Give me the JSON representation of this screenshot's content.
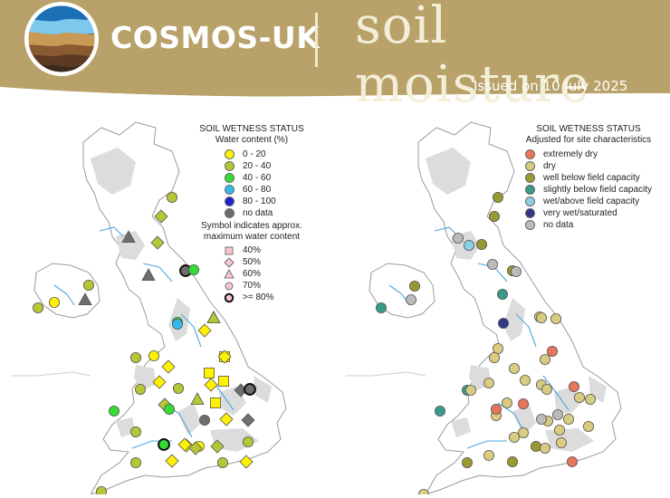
{
  "header": {
    "brand": "COSMOS-UK",
    "title": "soil moisture",
    "issued": "Issued on 10 July 2025",
    "bg_color": "#b8a269"
  },
  "left_legend": {
    "title": "SOIL WETNESS STATUS",
    "subtitle": "Water content (%)",
    "classes": [
      {
        "label": "0 -  20",
        "color": "#fff200"
      },
      {
        "label": "20 -  40",
        "color": "#b5c636"
      },
      {
        "label": "40 -  60",
        "color": "#33dd33"
      },
      {
        "label": "60 -  80",
        "color": "#33bbee"
      },
      {
        "label": "80 - 100",
        "color": "#2222cc"
      },
      {
        "label": "no data",
        "color": "#6e6e6e"
      }
    ],
    "symbol_title_1": "Symbol indicates approx.",
    "symbol_title_2": "maximum water content",
    "symbols": [
      {
        "label": "40%",
        "shape": "square"
      },
      {
        "label": "50%",
        "shape": "diamond"
      },
      {
        "label": "60%",
        "shape": "triangle"
      },
      {
        "label": "70%",
        "shape": "circle"
      },
      {
        "label": ">= 80%",
        "shape": "circle-bold"
      }
    ]
  },
  "right_legend": {
    "title": "SOIL WETNESS STATUS",
    "subtitle": "Adjusted for site characteristics",
    "classes": [
      {
        "label": "extremely dry",
        "color": "#e8755a"
      },
      {
        "label": "dry",
        "color": "#d9cc80"
      },
      {
        "label": "well below field capacity",
        "color": "#999933"
      },
      {
        "label": "slightly below field capacity",
        "color": "#3a9a8a"
      },
      {
        "label": "wet/above field capacity",
        "color": "#8ecfe6"
      },
      {
        "label": "very wet/saturated",
        "color": "#2e3a86"
      },
      {
        "label": "no data",
        "color": "#bbbbbb"
      }
    ]
  },
  "left_sites": [
    {
      "shape": "circle",
      "cls": 1
    },
    {
      "shape": "diamond",
      "cls": 1
    },
    {
      "shape": "diamond",
      "cls": 1
    },
    {
      "shape": "triangle",
      "cls": 5
    },
    {
      "shape": "triangle",
      "cls": 5
    },
    {
      "shape": "triangle",
      "cls": 5
    },
    {
      "shape": "circle",
      "cls": 1
    },
    {
      "shape": "circle-bold",
      "cls": 5
    },
    {
      "shape": "circle",
      "cls": 2
    },
    {
      "shape": "triangle",
      "cls": 5
    },
    {
      "shape": "circle",
      "cls": 2
    },
    {
      "shape": "circle",
      "cls": 3
    },
    {
      "shape": "triangle",
      "cls": 1
    },
    {
      "shape": "diamond",
      "cls": 0
    },
    {
      "shape": "circle",
      "cls": 1
    },
    {
      "shape": "circle",
      "cls": 0
    },
    {
      "shape": "diamond",
      "cls": 0
    },
    {
      "shape": "circle",
      "cls": 1
    },
    {
      "shape": "diamond",
      "cls": 0
    },
    {
      "shape": "circle",
      "cls": 1
    },
    {
      "shape": "square",
      "cls": 0
    },
    {
      "shape": "diamond",
      "cls": 0
    },
    {
      "shape": "square",
      "cls": 0
    },
    {
      "shape": "square",
      "cls": 0
    },
    {
      "shape": "circle",
      "cls": 2
    },
    {
      "shape": "circle",
      "cls": 1
    },
    {
      "shape": "diamond",
      "cls": 1
    },
    {
      "shape": "triangle",
      "cls": 1
    },
    {
      "shape": "circle",
      "cls": 2
    },
    {
      "shape": "square",
      "cls": 0
    },
    {
      "shape": "diamond",
      "cls": 0
    },
    {
      "shape": "diamond",
      "cls": 5
    },
    {
      "shape": "circle-bold",
      "cls": 5
    },
    {
      "shape": "diamond",
      "cls": 0
    },
    {
      "shape": "circle",
      "cls": 5
    },
    {
      "shape": "diamond",
      "cls": 5
    },
    {
      "shape": "diamond",
      "cls": 0
    },
    {
      "shape": "circle",
      "cls": 0
    },
    {
      "shape": "diamond",
      "cls": 1
    },
    {
      "shape": "circle",
      "cls": 1
    },
    {
      "shape": "circle-bold",
      "cls": 2
    },
    {
      "shape": "diamond",
      "cls": 0
    },
    {
      "shape": "diamond",
      "cls": 1
    },
    {
      "shape": "circle",
      "cls": 1
    },
    {
      "shape": "diamond",
      "cls": 0
    },
    {
      "shape": "circle",
      "cls": 1
    },
    {
      "shape": "diamond",
      "cls": 0
    },
    {
      "shape": "circle",
      "cls": 1
    },
    {
      "shape": "circle",
      "cls": 0
    },
    {
      "shape": "circle",
      "cls": 1
    }
  ],
  "right_sites": [
    {
      "cls": 2
    },
    {
      "cls": 2
    },
    {
      "cls": 6
    },
    {
      "cls": 4
    },
    {
      "cls": 2
    },
    {
      "cls": 6
    },
    {
      "cls": 2
    },
    {
      "cls": 6
    },
    {
      "cls": 3
    },
    {
      "cls": 2
    },
    {
      "cls": 6
    },
    {
      "cls": 3
    },
    {
      "cls": 5
    },
    {
      "cls": 1
    },
    {
      "cls": 1
    },
    {
      "cls": 1
    },
    {
      "cls": 1
    },
    {
      "cls": 0
    },
    {
      "cls": 1
    },
    {
      "cls": 1
    },
    {
      "cls": 1
    },
    {
      "cls": 1
    },
    {
      "cls": 3
    },
    {
      "cls": 1
    },
    {
      "cls": 1
    },
    {
      "cls": 1
    },
    {
      "cls": 0
    },
    {
      "cls": 1
    },
    {
      "cls": 1
    },
    {
      "cls": 0
    },
    {
      "cls": 1
    },
    {
      "cls": 1
    },
    {
      "cls": 3
    },
    {
      "cls": 1
    },
    {
      "cls": 0
    },
    {
      "cls": 6
    },
    {
      "cls": 6
    },
    {
      "cls": 1
    },
    {
      "cls": 1
    },
    {
      "cls": 1
    },
    {
      "cls": 1
    },
    {
      "cls": 2
    },
    {
      "cls": 1
    },
    {
      "cls": 1
    },
    {
      "cls": 1
    },
    {
      "cls": 1
    },
    {
      "cls": 2
    },
    {
      "cls": 2
    },
    {
      "cls": 1
    },
    {
      "cls": 0
    },
    {
      "cls": 1
    }
  ]
}
